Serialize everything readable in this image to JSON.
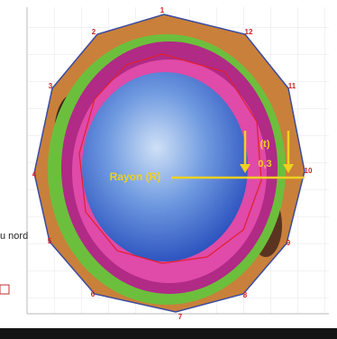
{
  "polygon_labels": [
    "1",
    "2",
    "3",
    "4",
    "5",
    "6",
    "7",
    "8",
    "9",
    "10",
    "11",
    "12"
  ],
  "radius_label": "Rayon (R)",
  "thickness_label": "(t)",
  "thickness_value": "0,3",
  "side_label": "u nord"
}
